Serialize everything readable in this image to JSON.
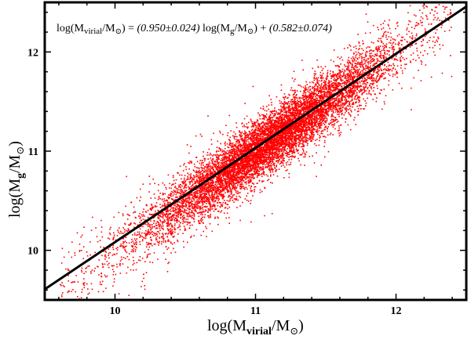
{
  "chart_data": {
    "type": "scatter",
    "title": "",
    "xlabel": {
      "prefix": "log(M",
      "sub": "virial",
      "mid": "/M",
      "sub2": "⊙",
      "suffix": ")"
    },
    "ylabel": {
      "prefix": "log(M",
      "sub": "g",
      "mid": "/M",
      "sub2": "⊙",
      "suffix": ")"
    },
    "xlim": [
      9.5,
      12.5
    ],
    "ylim": [
      9.5,
      12.5
    ],
    "x_ticks": [
      10,
      11,
      12
    ],
    "y_ticks": [
      10,
      11,
      12
    ],
    "x_tick_labels": [
      "10",
      "11",
      "12"
    ],
    "y_tick_labels": [
      "10",
      "11",
      "12"
    ],
    "grid": false,
    "annotation": {
      "lhs_prefix": "log(M",
      "lhs_sub": "virial",
      "lhs_mid": "/M",
      "lhs_sub2": "⊙",
      "lhs_suffix": ") = ",
      "coef": "(0.950±0.024)",
      "var_prefix": " log(M",
      "var_sub": "g",
      "var_mid": "/M",
      "var_sub2": "⊙",
      "var_suffix": ") + ",
      "intercept": "(0.582±0.074)"
    },
    "fit_line": {
      "slope": 0.95,
      "intercept": 0.582,
      "color": "#000000"
    },
    "scatter_series": {
      "color": "#ff0000",
      "x_range": [
        9.6,
        12.4
      ],
      "mean_trend": "y ≈ x",
      "scatter_sigma": 0.15
    }
  }
}
